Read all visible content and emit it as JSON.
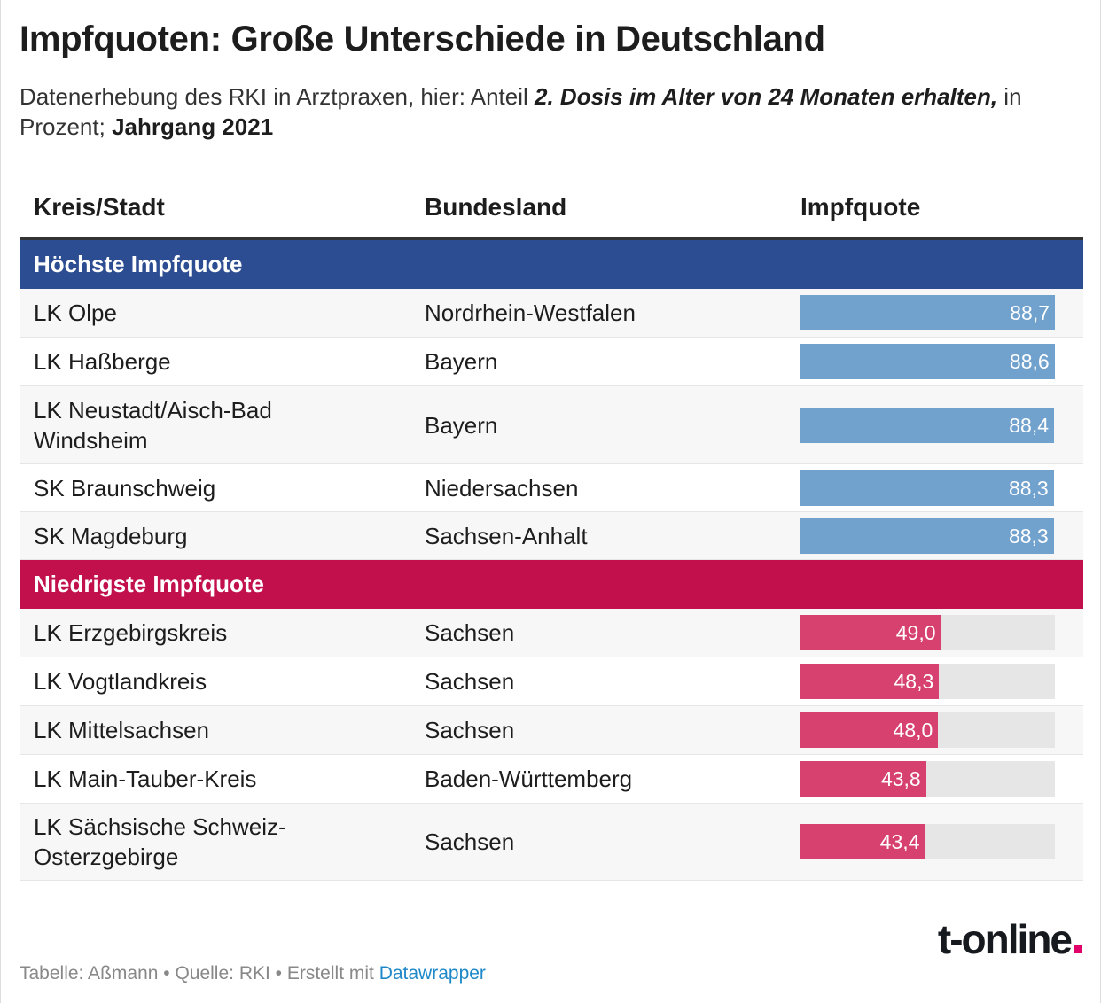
{
  "title": "Impfquoten: Große Unterschiede in Deutschland",
  "subtitle": {
    "part1": "Datenerhebung des RKI in Arztpraxen, hier: Anteil ",
    "bold_italic": "2. Dosis im Alter von 24 Monaten erhalten,",
    "part2": " in Prozent; ",
    "bold": "Jahrgang 2021"
  },
  "chart_data": {
    "type": "table",
    "columns": [
      "Kreis/Stadt",
      "Bundesland",
      "Impfquote"
    ],
    "bar_max": 88.7,
    "colors": {
      "high_header": "#2d4d92",
      "high_bar": "#71a1cd",
      "low_header": "#c1104c",
      "low_bar": "#d6416f",
      "bar_track": "#e6e6e6"
    },
    "groups": [
      {
        "label": "Höchste Impfquote",
        "rows": [
          {
            "kreis": "LK Olpe",
            "land": "Nordrhein-Westfalen",
            "value": 88.7,
            "label": "88,7"
          },
          {
            "kreis": "LK Haßberge",
            "land": "Bayern",
            "value": 88.6,
            "label": "88,6"
          },
          {
            "kreis": "LK Neustadt/Aisch-Bad Windsheim",
            "land": "Bayern",
            "value": 88.4,
            "label": "88,4"
          },
          {
            "kreis": "SK Braunschweig",
            "land": "Niedersachsen",
            "value": 88.3,
            "label": "88,3"
          },
          {
            "kreis": "SK Magdeburg",
            "land": "Sachsen-Anhalt",
            "value": 88.3,
            "label": "88,3"
          }
        ]
      },
      {
        "label": "Niedrigste Impfquote",
        "rows": [
          {
            "kreis": "LK Erzgebirgskreis",
            "land": "Sachsen",
            "value": 49.0,
            "label": "49,0"
          },
          {
            "kreis": "LK Vogtlandkreis",
            "land": "Sachsen",
            "value": 48.3,
            "label": "48,3"
          },
          {
            "kreis": "LK Mittelsachsen",
            "land": "Sachsen",
            "value": 48.0,
            "label": "48,0"
          },
          {
            "kreis": "LK Main-Tauber-Kreis",
            "land": "Baden-Württemberg",
            "value": 43.8,
            "label": "43,8"
          },
          {
            "kreis": "LK Sächsische Schweiz-Osterzgebirge",
            "land": "Sachsen",
            "value": 43.4,
            "label": "43,4"
          }
        ]
      }
    ]
  },
  "logo": "t-online",
  "footer": {
    "text": "Tabelle: Aßmann • Quelle: RKI • Erstellt mit ",
    "link": "Datawrapper"
  }
}
